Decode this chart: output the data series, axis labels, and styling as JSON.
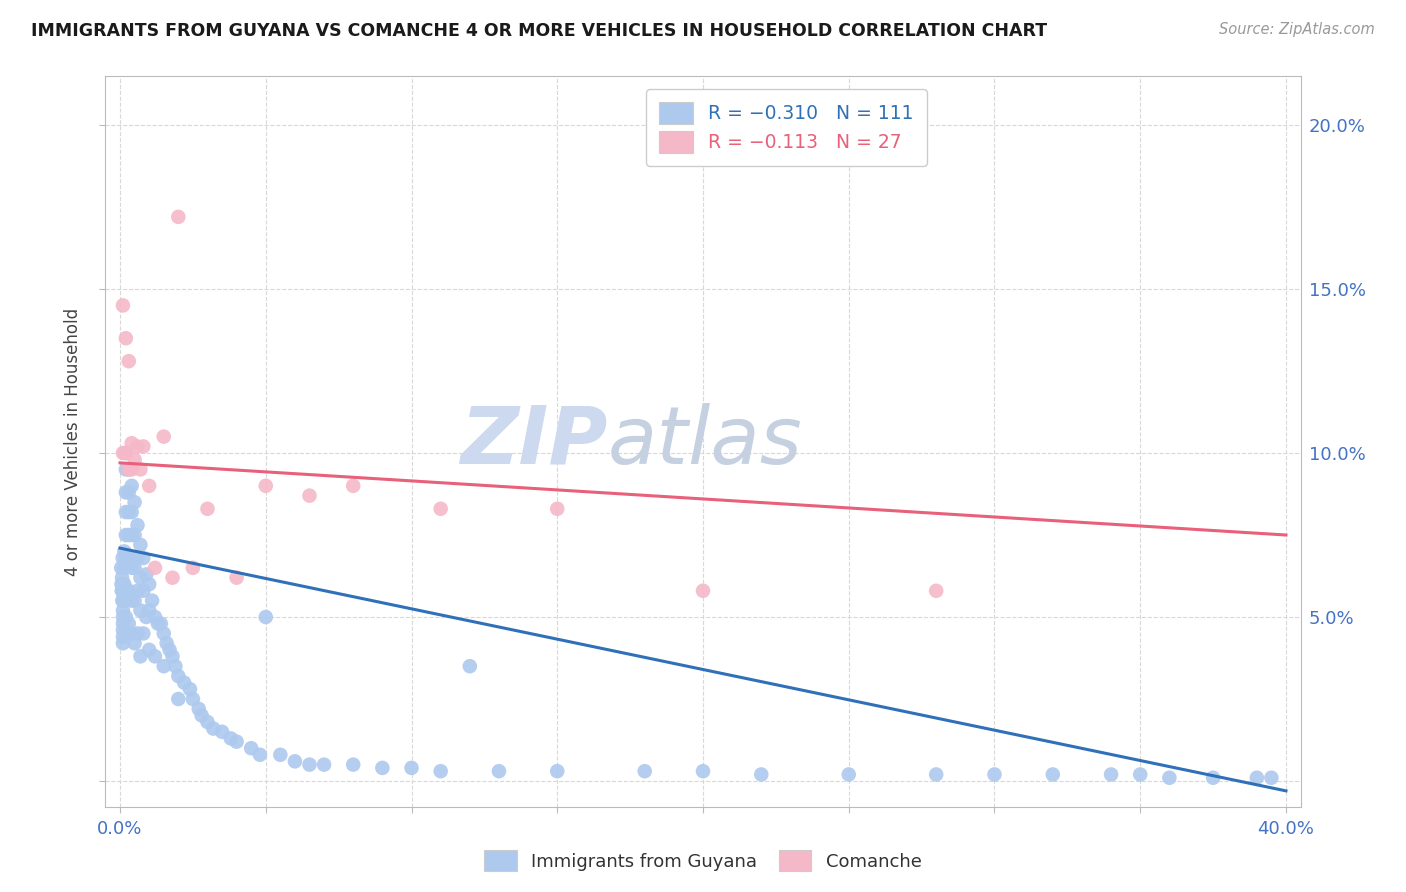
{
  "title": "IMMIGRANTS FROM GUYANA VS COMANCHE 4 OR MORE VEHICLES IN HOUSEHOLD CORRELATION CHART",
  "source": "Source: ZipAtlas.com",
  "ylabel": "4 or more Vehicles in Household",
  "legend_blue_label": "R = −0.310   N = 111",
  "legend_pink_label": "R = −0.113   N = 27",
  "blue_color": "#adc9ee",
  "pink_color": "#f5b8c8",
  "blue_line_color": "#3070b8",
  "pink_line_color": "#e8607a",
  "title_color": "#1a1a1a",
  "source_color": "#999999",
  "axis_label_color": "#4472c4",
  "watermark_zip_color": "#c8d8f0",
  "watermark_atlas_color": "#c0cce0",
  "background_color": "#ffffff",
  "grid_color": "#d8d8d8",
  "blue_trendline_x": [
    0.0,
    0.4
  ],
  "blue_trendline_y": [
    0.071,
    -0.003
  ],
  "pink_trendline_x": [
    0.0,
    0.4
  ],
  "pink_trendline_y": [
    0.097,
    0.075
  ],
  "xlim": [
    -0.005,
    0.405
  ],
  "ylim": [
    -0.008,
    0.215
  ],
  "xticks": [
    0.0,
    0.05,
    0.1,
    0.15,
    0.2,
    0.25,
    0.3,
    0.35,
    0.4
  ],
  "yticks": [
    0.0,
    0.05,
    0.1,
    0.15,
    0.2
  ],
  "blue_x": [
    0.0004,
    0.0005,
    0.0006,
    0.0007,
    0.0008,
    0.0009,
    0.001,
    0.001,
    0.001,
    0.001,
    0.001,
    0.001,
    0.001,
    0.001,
    0.001,
    0.0015,
    0.0015,
    0.0015,
    0.0015,
    0.002,
    0.002,
    0.002,
    0.002,
    0.002,
    0.002,
    0.002,
    0.002,
    0.003,
    0.003,
    0.003,
    0.003,
    0.003,
    0.003,
    0.003,
    0.004,
    0.004,
    0.004,
    0.004,
    0.004,
    0.004,
    0.005,
    0.005,
    0.005,
    0.005,
    0.005,
    0.006,
    0.006,
    0.006,
    0.006,
    0.007,
    0.007,
    0.007,
    0.007,
    0.008,
    0.008,
    0.008,
    0.009,
    0.009,
    0.01,
    0.01,
    0.01,
    0.011,
    0.012,
    0.012,
    0.013,
    0.014,
    0.015,
    0.015,
    0.016,
    0.017,
    0.018,
    0.019,
    0.02,
    0.02,
    0.022,
    0.024,
    0.025,
    0.027,
    0.028,
    0.03,
    0.032,
    0.035,
    0.038,
    0.04,
    0.045,
    0.048,
    0.05,
    0.055,
    0.06,
    0.065,
    0.07,
    0.08,
    0.09,
    0.1,
    0.11,
    0.12,
    0.13,
    0.15,
    0.18,
    0.2,
    0.22,
    0.25,
    0.28,
    0.3,
    0.32,
    0.34,
    0.35,
    0.36,
    0.375,
    0.39,
    0.395
  ],
  "blue_y": [
    0.065,
    0.06,
    0.058,
    0.062,
    0.055,
    0.068,
    0.06,
    0.058,
    0.055,
    0.052,
    0.05,
    0.048,
    0.046,
    0.044,
    0.042,
    0.07,
    0.065,
    0.06,
    0.055,
    0.1,
    0.095,
    0.088,
    0.082,
    0.075,
    0.068,
    0.058,
    0.05,
    0.095,
    0.088,
    0.082,
    0.075,
    0.068,
    0.058,
    0.048,
    0.09,
    0.082,
    0.075,
    0.065,
    0.055,
    0.045,
    0.085,
    0.075,
    0.065,
    0.055,
    0.042,
    0.078,
    0.068,
    0.058,
    0.045,
    0.072,
    0.062,
    0.052,
    0.038,
    0.068,
    0.058,
    0.045,
    0.063,
    0.05,
    0.06,
    0.052,
    0.04,
    0.055,
    0.05,
    0.038,
    0.048,
    0.048,
    0.045,
    0.035,
    0.042,
    0.04,
    0.038,
    0.035,
    0.032,
    0.025,
    0.03,
    0.028,
    0.025,
    0.022,
    0.02,
    0.018,
    0.016,
    0.015,
    0.013,
    0.012,
    0.01,
    0.008,
    0.05,
    0.008,
    0.006,
    0.005,
    0.005,
    0.005,
    0.004,
    0.004,
    0.003,
    0.035,
    0.003,
    0.003,
    0.003,
    0.003,
    0.002,
    0.002,
    0.002,
    0.002,
    0.002,
    0.002,
    0.002,
    0.001,
    0.001,
    0.001,
    0.001
  ],
  "pink_x": [
    0.001,
    0.001,
    0.002,
    0.002,
    0.003,
    0.003,
    0.004,
    0.004,
    0.005,
    0.006,
    0.007,
    0.008,
    0.01,
    0.012,
    0.015,
    0.018,
    0.02,
    0.025,
    0.03,
    0.04,
    0.05,
    0.065,
    0.08,
    0.11,
    0.15,
    0.2,
    0.28
  ],
  "pink_y": [
    0.145,
    0.1,
    0.135,
    0.1,
    0.128,
    0.095,
    0.103,
    0.095,
    0.098,
    0.102,
    0.095,
    0.102,
    0.09,
    0.065,
    0.105,
    0.062,
    0.172,
    0.065,
    0.083,
    0.062,
    0.09,
    0.087,
    0.09,
    0.083,
    0.083,
    0.058,
    0.058
  ]
}
